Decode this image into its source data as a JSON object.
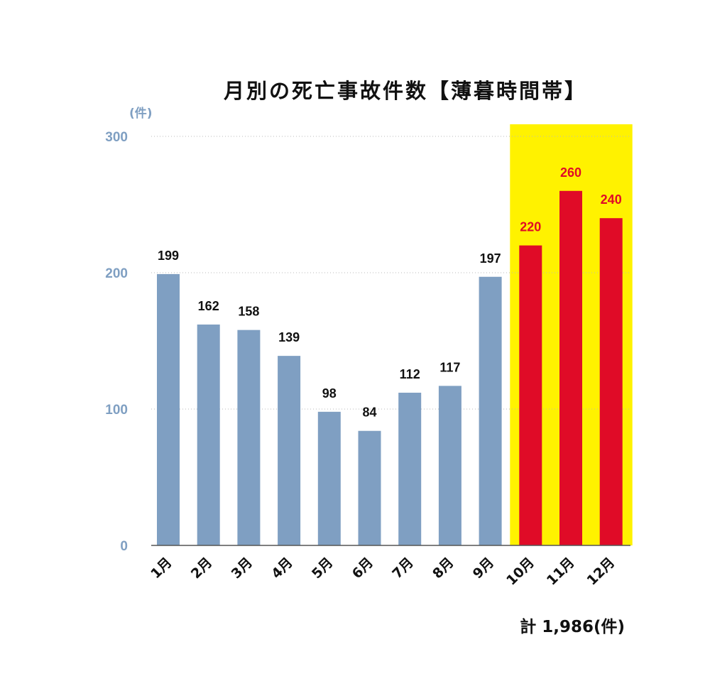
{
  "colors": {
    "normal_bar": "#7f9fc2",
    "highlight_bar": "#e00b27",
    "highlight_band": "#fff200",
    "axis_text": "#7f9fc2",
    "value_text_normal": "#111111",
    "value_text_highlight": "#e00b27",
    "gridline": "#b8b8b8"
  },
  "chart_data": {
    "type": "bar",
    "title": "月別の死亡事故件数【薄暮時間帯】",
    "ylabel": "(件)",
    "ylim": [
      0,
      300
    ],
    "yticks": [
      "0",
      "100",
      "200",
      "300"
    ],
    "grid": true,
    "categories": [
      "1月",
      "2月",
      "3月",
      "4月",
      "5月",
      "6月",
      "7月",
      "8月",
      "9月",
      "10月",
      "11月",
      "12月"
    ],
    "values": [
      199,
      162,
      158,
      139,
      98,
      84,
      112,
      117,
      197,
      220,
      260,
      240
    ],
    "value_labels": [
      "199",
      "162",
      "158",
      "139",
      "98",
      "84",
      "112",
      "117",
      "197",
      "220",
      "260",
      "240"
    ],
    "highlighted_categories": [
      "10月",
      "11月",
      "12月"
    ],
    "total_label": "計 1,986(件)"
  }
}
